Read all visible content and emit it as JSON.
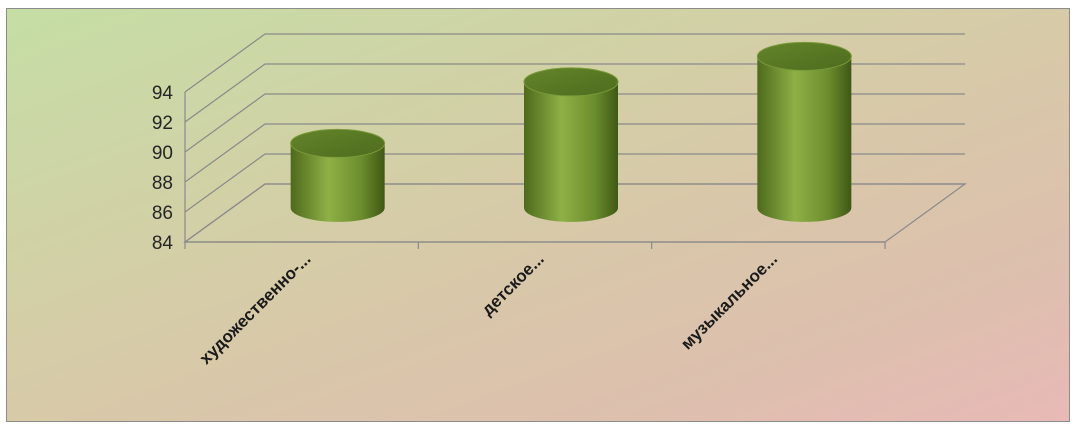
{
  "chart_data": {
    "type": "bar",
    "style": "3d-cylinder",
    "categories": [
      "художественно-...",
      "детское...",
      "музыкальное..."
    ],
    "values": [
      88.3,
      92.4,
      94.1
    ],
    "ylim": [
      84,
      94
    ],
    "yticks": [
      84,
      86,
      88,
      90,
      92,
      94
    ],
    "grid": true,
    "bar_color": "#6e8f2e",
    "title": "",
    "xlabel": "",
    "ylabel": ""
  }
}
